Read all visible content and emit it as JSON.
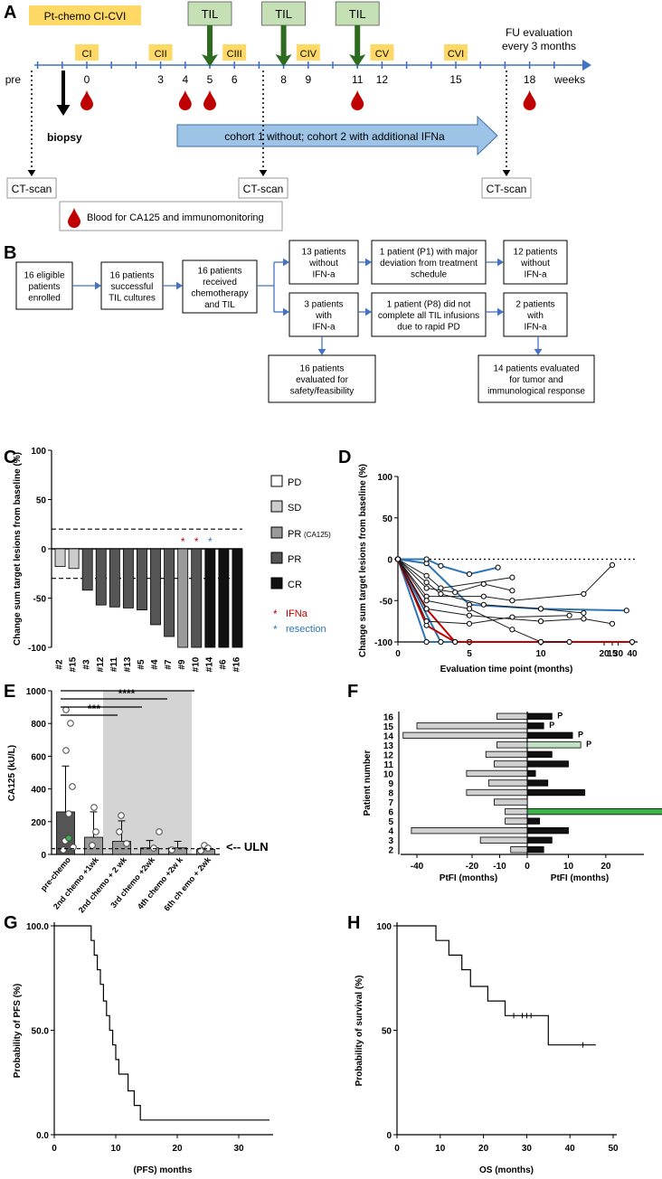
{
  "colors": {
    "timeline": "#4472c4",
    "cycle": "#ffd966",
    "til_box": "#c5e0b4",
    "til_arrow": "#2e6b20",
    "blood": "#c00000",
    "ifn_arrow": "#9dc3e6",
    "flow_arrow": "#4472c4",
    "red": "#c00000",
    "blue": "#2e75b6",
    "green": "#3cb44b",
    "grey_bar": "#d0d0d0",
    "dark": "#1a1a1a"
  },
  "panelA": {
    "letter": "A",
    "chemo_label": "Pt-chemo CI-CVI",
    "til_label": "TIL",
    "fu_label": "FU evaluation\nevery 3 months",
    "cycles": [
      "CI",
      "CII",
      "CIII",
      "CIV",
      "CV",
      "CVI"
    ],
    "week_labels": [
      "pre",
      "0",
      "3",
      "4",
      "5",
      "6",
      "8",
      "9",
      "11",
      "12",
      "15",
      "18"
    ],
    "weeks_unit": "weeks",
    "biopsy": "biopsy",
    "ifn_arrow_label": "cohort 1 without; cohort 2 with additional IFNa",
    "ct_scan": "CT-scan",
    "blood_label": "Blood for CA125 and immunomonitoring"
  },
  "panelB": {
    "letter": "B",
    "boxes": [
      "16 eligible\npatients\nenrolled",
      "16 patients\nsuccessful\nTIL cultures",
      "16 patients\nreceived\nchemotherapy\nand TIL",
      "13 patients\nwithout\nIFN-a",
      "1 patient (P1) with major\ndeviation from treatment\nschedule",
      "12 patients\nwithout\nIFN-a",
      "3 patients\nwith\nIFN-a",
      "1 patient (P8) did not\ncomplete all TIL infusions\ndue to rapid PD",
      "2 patients\nwith\nIFN-a",
      "16 patients\nevaluated for\nsafety/feasibility",
      "14 patients evaluated\nfor tumor and\nimmunological response"
    ]
  },
  "chart_data": [
    {
      "panel": "C",
      "type": "bar",
      "ylabel": "Change sum target lesions from baseline (%)",
      "ylim": [
        -100,
        100
      ],
      "yticks": [
        -100,
        -50,
        0,
        50,
        100
      ],
      "reference_lines": [
        20,
        -30
      ],
      "categories": [
        "#2",
        "#15",
        "#3",
        "#12",
        "#11",
        "#13",
        "#5",
        "#4",
        "#7",
        "#9",
        "#10",
        "#14",
        "#6",
        "#16"
      ],
      "values": [
        -18,
        -20,
        -42,
        -57,
        -59,
        -60,
        -62,
        -77,
        -89,
        -100,
        -100,
        -100,
        -100,
        -100
      ],
      "response": [
        "SD",
        "SD",
        "PR",
        "PR",
        "PR",
        "PR",
        "PR",
        "PR",
        "PR",
        "PR (CA125)",
        "PR",
        "CR",
        "CR",
        "CR"
      ],
      "ifna": [
        "#9",
        "#10"
      ],
      "resection": [
        "#14"
      ],
      "legend": [
        "PD",
        "SD",
        "PR (CA125)",
        "PR",
        "CR"
      ],
      "legend_extra": [
        {
          "label": "IFNa",
          "color": "#c00000"
        },
        {
          "label": "resection",
          "color": "#2e75b6"
        }
      ]
    },
    {
      "panel": "D",
      "type": "line",
      "xlabel": "Evaluation time point (months)",
      "ylabel": "Change sum target lesions from baseline (%)",
      "ylim": [
        -100,
        100
      ],
      "yticks": [
        -100,
        -50,
        0,
        50,
        100
      ],
      "xticks": [
        "0",
        "5",
        "10",
        "15",
        "20",
        "30",
        "40"
      ],
      "series": [
        {
          "color": "#2e75b6",
          "points": [
            [
              0,
              0
            ],
            [
              2,
              -100
            ],
            [
              5,
              -100
            ]
          ]
        },
        {
          "color": "#2e75b6",
          "points": [
            [
              0,
              0
            ],
            [
              3,
              -100
            ],
            [
              5,
              -100
            ]
          ]
        },
        {
          "color": "#2e75b6",
          "points": [
            [
              0,
              0
            ],
            [
              2,
              -5
            ],
            [
              5,
              -55
            ],
            [
              10,
              -60
            ],
            [
              16,
              -62
            ]
          ]
        },
        {
          "color": "#2e75b6",
          "points": [
            [
              0,
              0
            ],
            [
              2,
              0
            ],
            [
              3,
              -8
            ],
            [
              5,
              -18
            ],
            [
              7,
              -10
            ]
          ]
        },
        {
          "color": "#c00000",
          "points": [
            [
              0,
              0
            ],
            [
              2,
              -60
            ],
            [
              4,
              -100
            ],
            [
              10,
              -100
            ],
            [
              40,
              -100
            ]
          ]
        },
        {
          "color": "#c00000",
          "points": [
            [
              0,
              0
            ],
            [
              2,
              -80
            ],
            [
              4,
              -100
            ]
          ]
        },
        {
          "color": "#1a1a1a",
          "points": [
            [
              0,
              0
            ],
            [
              2,
              -20
            ],
            [
              3,
              -35
            ],
            [
              8,
              -22
            ]
          ]
        },
        {
          "color": "#1a1a1a",
          "points": [
            [
              0,
              0
            ],
            [
              2,
              -45
            ],
            [
              6,
              -45
            ],
            [
              8,
              -50
            ],
            [
              13,
              -42
            ],
            [
              15,
              -7
            ]
          ]
        },
        {
          "color": "#1a1a1a",
          "points": [
            [
              0,
              0
            ],
            [
              2,
              -60
            ],
            [
              5,
              -68
            ],
            [
              10,
              -75
            ],
            [
              13,
              -72
            ],
            [
              15,
              -78
            ]
          ]
        },
        {
          "color": "#1a1a1a",
          "points": [
            [
              0,
              0
            ],
            [
              2,
              -28
            ],
            [
              3,
              -42
            ],
            [
              6,
              -55
            ],
            [
              10,
              -60
            ],
            [
              13,
              -65
            ]
          ]
        },
        {
          "color": "#1a1a1a",
          "points": [
            [
              0,
              0
            ],
            [
              2,
              -50
            ],
            [
              5,
              -60
            ],
            [
              8,
              -85
            ],
            [
              10,
              -100
            ],
            [
              12,
              -100
            ]
          ]
        },
        {
          "color": "#1a1a1a",
          "points": [
            [
              0,
              0
            ],
            [
              2,
              -75
            ],
            [
              5,
              -78
            ],
            [
              8,
              -70
            ],
            [
              12,
              -68
            ]
          ]
        },
        {
          "color": "#1a1a1a",
          "points": [
            [
              0,
              0
            ],
            [
              2,
              -35
            ],
            [
              4,
              -40
            ],
            [
              6,
              -30
            ],
            [
              8,
              -38
            ]
          ]
        }
      ]
    },
    {
      "panel": "E",
      "type": "bar",
      "ylabel": "CA125 (kU/L)",
      "ylim": [
        0,
        1000
      ],
      "yticks": [
        0,
        200,
        400,
        600,
        800,
        1000
      ],
      "categories": [
        "pre-chemo",
        "2nd chemo +1wk",
        "2nd chemo + 2 wk",
        "3rd chemo +2wk",
        "4th chemo +2w k",
        "6th ch emo + 2wk"
      ],
      "values": [
        260,
        105,
        80,
        40,
        40,
        30
      ],
      "sd_upper": [
        540,
        260,
        205,
        85,
        80,
        50
      ],
      "uln_label": "<-- ULN",
      "uln_value": 35,
      "significance": [
        "***",
        "****"
      ]
    },
    {
      "panel": "F",
      "type": "bar",
      "ylabel": "Patient number",
      "xlabel_left": "PtFI (months)",
      "xlabel_right": "PtFI (months)",
      "patients": [
        "16",
        "15",
        "14",
        "13",
        "12",
        "11",
        "10",
        "9",
        "8",
        "7",
        "6",
        "5",
        "4",
        "3",
        "2"
      ],
      "left_values": [
        -11,
        -40,
        -45,
        -11,
        -15,
        -12,
        -22,
        -14,
        -22,
        -12,
        -8,
        -8,
        -42,
        -17,
        -6
      ],
      "right_values": [
        6,
        4,
        11,
        13,
        6,
        10,
        2,
        5,
        14,
        0,
        41,
        3,
        10,
        6,
        4
      ],
      "annotations": {
        "16": "P",
        "15": "P",
        "14": "P",
        "13": "P",
        "6": ">"
      },
      "xticks": [
        "-40",
        "-20",
        "-10",
        "0",
        "10",
        "20",
        "40"
      ]
    },
    {
      "panel": "G",
      "type": "line",
      "xlabel": "(PFS) months",
      "ylabel": "Probability of PFS (%)",
      "xlim": [
        0,
        35
      ],
      "ylim": [
        0,
        100
      ],
      "xticks": [
        0,
        10,
        20,
        30
      ],
      "yticks": [
        0,
        50,
        100
      ],
      "x": [
        0,
        6,
        6.5,
        7,
        7.5,
        8,
        8.5,
        9,
        9.5,
        10,
        10.5,
        12,
        13,
        14,
        15,
        16,
        18,
        35
      ],
      "y": [
        100,
        93,
        86,
        79,
        72,
        64,
        57,
        50,
        43,
        36,
        29,
        21,
        14,
        7,
        7,
        7,
        7,
        7
      ]
    },
    {
      "panel": "H",
      "type": "line",
      "xlabel": "OS (months)",
      "ylabel": "Probability of survival (%)",
      "xlim": [
        0,
        50
      ],
      "ylim": [
        0,
        100
      ],
      "xticks": [
        0,
        10,
        20,
        30,
        40,
        50
      ],
      "yticks": [
        0,
        50,
        100
      ],
      "x": [
        0,
        9,
        12,
        15,
        17,
        21,
        25,
        35,
        46
      ],
      "y": [
        100,
        93,
        86,
        79,
        71,
        64,
        57,
        43,
        43
      ]
    }
  ]
}
